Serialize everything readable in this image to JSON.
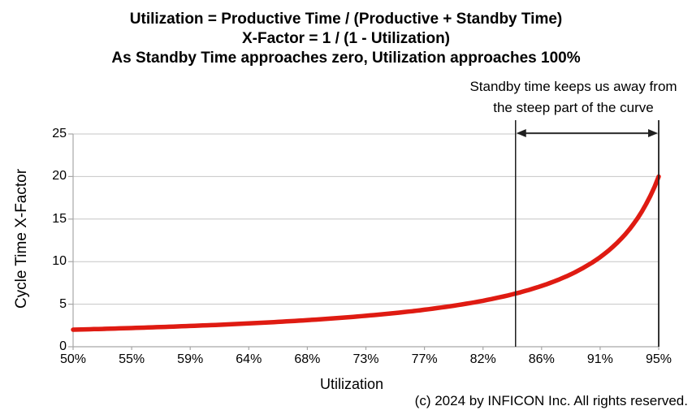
{
  "title": {
    "line1": "Utilization = Productive Time / (Productive + Standby Time)",
    "line2": "X-Factor = 1 / (1 - Utilization)",
    "line3": "As Standby Time approaches zero, Utilization approaches 100%"
  },
  "annotation": {
    "line1": "Standby time keeps us away from",
    "line2": "the steep part of the curve"
  },
  "footer": {
    "copyright": "(c) 2024 by INFICON Inc. All rights reserved."
  },
  "chart_data": {
    "type": "line",
    "xlabel": "Utilization",
    "ylabel": "Cycle Time X-Factor",
    "x_tick_labels": [
      "50%",
      "55%",
      "59%",
      "64%",
      "68%",
      "73%",
      "77%",
      "82%",
      "86%",
      "91%",
      "95%"
    ],
    "utilization_values": [
      0.5,
      0.545,
      0.59,
      0.635,
      0.68,
      0.725,
      0.77,
      0.815,
      0.86,
      0.905,
      0.95
    ],
    "series": [
      {
        "name": "Cycle Time X-Factor",
        "values": [
          2.0,
          2.2,
          2.44,
          2.74,
          3.13,
          3.64,
          4.35,
          5.41,
          7.14,
          10.53,
          20.0
        ]
      }
    ],
    "formula": "x_factor = 1 / (1 - utilization)",
    "ylim": [
      0,
      25
    ],
    "y_ticks": [
      0,
      5,
      10,
      15,
      20,
      25
    ],
    "grid": "horizontal",
    "legend": "none",
    "highlight_region": {
      "from_utilization": 0.84,
      "to_utilization": 0.95,
      "marker": "double-headed-arrow"
    },
    "colors": {
      "series": "#df1b12",
      "gridline": "#c6c6c6",
      "axis": "#a6a6a6",
      "annotation_line": "#1f1f1f",
      "text": "#000000"
    }
  }
}
